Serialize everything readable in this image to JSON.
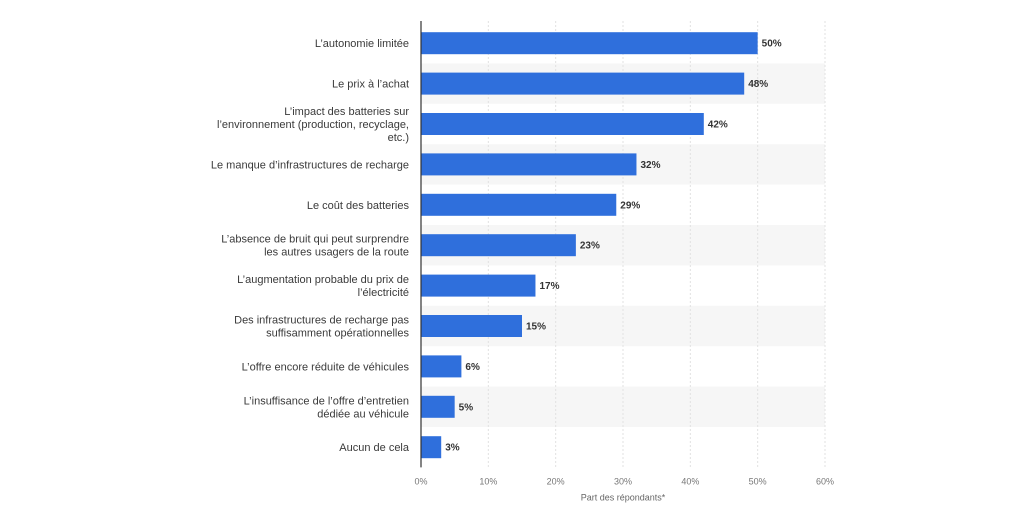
{
  "chart_data": {
    "type": "bar",
    "orientation": "horizontal",
    "categories": [
      [
        "L’autonomie limitée"
      ],
      [
        "Le prix à l’achat"
      ],
      [
        "L’impact des batteries sur",
        "l’environnement (production, recyclage,",
        "etc.)"
      ],
      [
        "Le manque d’infrastructures de recharge"
      ],
      [
        "Le coût des batteries"
      ],
      [
        "L’absence de bruit qui peut surprendre",
        "les autres usagers de la route"
      ],
      [
        "L’augmentation probable du prix de",
        "l’électricité"
      ],
      [
        "Des infrastructures de recharge pas",
        "suffisamment opérationnelles"
      ],
      [
        "L’offre encore réduite de véhicules"
      ],
      [
        "L’insuffisance de l’offre d’entretien",
        "dédiée au véhicule"
      ],
      [
        "Aucun de cela"
      ]
    ],
    "values": [
      50,
      48,
      42,
      32,
      29,
      23,
      17,
      15,
      6,
      5,
      3
    ],
    "value_labels": [
      "50%",
      "48%",
      "42%",
      "32%",
      "29%",
      "23%",
      "17%",
      "15%",
      "6%",
      "5%",
      "3%"
    ],
    "xlim": [
      0,
      60
    ],
    "x_ticks": [
      0,
      10,
      20,
      30,
      40,
      50,
      60
    ],
    "x_tick_labels": [
      "0%",
      "10%",
      "20%",
      "30%",
      "40%",
      "50%",
      "60%"
    ],
    "xlabel": "Part des répondants*",
    "bar_color": "#2f6fdc",
    "grid": true
  }
}
